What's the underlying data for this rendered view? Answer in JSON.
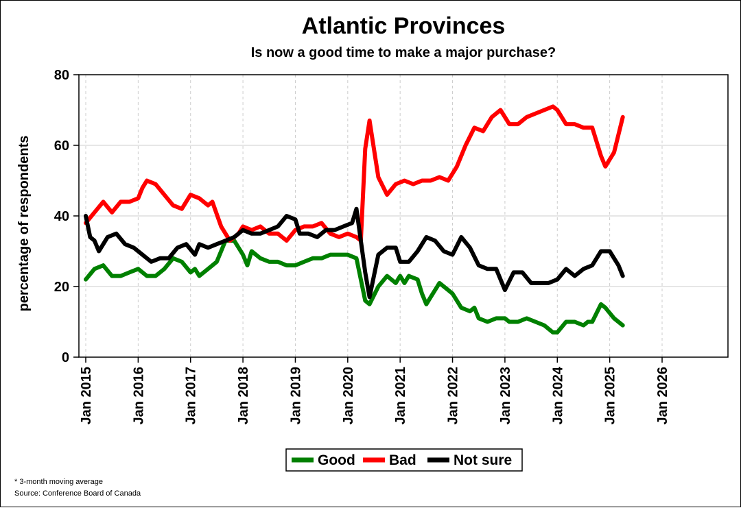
{
  "chart_data": {
    "type": "line",
    "title": "Atlantic Provinces",
    "subtitle": "Is now a good time to make a major purchase?",
    "ylabel": "percentage of respondents",
    "xlabel": "",
    "ylim": [
      0,
      80
    ],
    "yticks": [
      0,
      20,
      40,
      60,
      80
    ],
    "xlim": [
      "2015-01",
      "2026-01"
    ],
    "xticks": [
      "Jan 2015",
      "Jan 2016",
      "Jan 2017",
      "Jan 2018",
      "Jan 2019",
      "Jan 2020",
      "Jan 2021",
      "Jan 2022",
      "Jan 2023",
      "Jan 2024",
      "Jan 2025",
      "Jan 2026"
    ],
    "grid": true,
    "legend_position": "bottom-center",
    "series": [
      {
        "name": "Good",
        "color": "#008000",
        "points": [
          [
            "2015-01",
            22
          ],
          [
            "2015-03",
            25
          ],
          [
            "2015-05",
            26
          ],
          [
            "2015-07",
            23
          ],
          [
            "2015-09",
            23
          ],
          [
            "2015-11",
            24
          ],
          [
            "2016-01",
            25
          ],
          [
            "2016-03",
            23
          ],
          [
            "2016-05",
            23
          ],
          [
            "2016-07",
            25
          ],
          [
            "2016-09",
            28
          ],
          [
            "2016-11",
            27
          ],
          [
            "2017-01",
            24
          ],
          [
            "2017-02",
            25
          ],
          [
            "2017-03",
            23
          ],
          [
            "2017-05",
            25
          ],
          [
            "2017-07",
            27
          ],
          [
            "2017-09",
            33
          ],
          [
            "2017-11",
            33
          ],
          [
            "2018-01",
            29
          ],
          [
            "2018-02",
            26
          ],
          [
            "2018-03",
            30
          ],
          [
            "2018-05",
            28
          ],
          [
            "2018-07",
            27
          ],
          [
            "2018-09",
            27
          ],
          [
            "2018-11",
            26
          ],
          [
            "2019-01",
            26
          ],
          [
            "2019-03",
            27
          ],
          [
            "2019-05",
            28
          ],
          [
            "2019-07",
            28
          ],
          [
            "2019-09",
            29
          ],
          [
            "2019-11",
            29
          ],
          [
            "2020-01",
            29
          ],
          [
            "2020-03",
            28
          ],
          [
            "2020-05",
            16
          ],
          [
            "2020-06",
            15
          ],
          [
            "2020-08",
            20
          ],
          [
            "2020-10",
            23
          ],
          [
            "2020-12",
            21
          ],
          [
            "2021-01",
            23
          ],
          [
            "2021-02",
            21
          ],
          [
            "2021-03",
            23
          ],
          [
            "2021-05",
            22
          ],
          [
            "2021-06",
            18
          ],
          [
            "2021-07",
            15
          ],
          [
            "2021-08",
            17
          ],
          [
            "2021-10",
            21
          ],
          [
            "2021-12",
            19
          ],
          [
            "2022-01",
            18
          ],
          [
            "2022-02",
            16
          ],
          [
            "2022-03",
            14
          ],
          [
            "2022-05",
            13
          ],
          [
            "2022-06",
            14
          ],
          [
            "2022-07",
            11
          ],
          [
            "2022-09",
            10
          ],
          [
            "2022-11",
            11
          ],
          [
            "2023-01",
            11
          ],
          [
            "2023-02",
            10
          ],
          [
            "2023-04",
            10
          ],
          [
            "2023-06",
            11
          ],
          [
            "2023-08",
            10
          ],
          [
            "2023-10",
            9
          ],
          [
            "2023-12",
            7
          ],
          [
            "2024-01",
            7
          ],
          [
            "2024-03",
            10
          ],
          [
            "2024-05",
            10
          ],
          [
            "2024-07",
            9
          ],
          [
            "2024-08",
            10
          ],
          [
            "2024-09",
            10
          ],
          [
            "2024-11",
            15
          ],
          [
            "2024-12",
            14
          ],
          [
            "2025-02",
            11
          ],
          [
            "2025-04",
            9
          ]
        ]
      },
      {
        "name": "Bad",
        "color": "#ff0000",
        "points": [
          [
            "2015-01",
            38
          ],
          [
            "2015-03",
            41
          ],
          [
            "2015-05",
            44
          ],
          [
            "2015-07",
            41
          ],
          [
            "2015-09",
            44
          ],
          [
            "2015-11",
            44
          ],
          [
            "2016-01",
            45
          ],
          [
            "2016-02",
            48
          ],
          [
            "2016-03",
            50
          ],
          [
            "2016-05",
            49
          ],
          [
            "2016-07",
            46
          ],
          [
            "2016-09",
            43
          ],
          [
            "2016-11",
            42
          ],
          [
            "2017-01",
            46
          ],
          [
            "2017-03",
            45
          ],
          [
            "2017-05",
            43
          ],
          [
            "2017-06",
            44
          ],
          [
            "2017-08",
            37
          ],
          [
            "2017-10",
            33
          ],
          [
            "2017-12",
            35
          ],
          [
            "2018-01",
            37
          ],
          [
            "2018-03",
            36
          ],
          [
            "2018-05",
            37
          ],
          [
            "2018-07",
            35
          ],
          [
            "2018-09",
            35
          ],
          [
            "2018-11",
            33
          ],
          [
            "2019-01",
            36
          ],
          [
            "2019-03",
            37
          ],
          [
            "2019-05",
            37
          ],
          [
            "2019-07",
            38
          ],
          [
            "2019-09",
            35
          ],
          [
            "2019-11",
            34
          ],
          [
            "2020-01",
            35
          ],
          [
            "2020-03",
            34
          ],
          [
            "2020-04",
            33
          ],
          [
            "2020-05",
            59
          ],
          [
            "2020-06",
            67
          ],
          [
            "2020-08",
            51
          ],
          [
            "2020-10",
            46
          ],
          [
            "2020-12",
            49
          ],
          [
            "2021-02",
            50
          ],
          [
            "2021-04",
            49
          ],
          [
            "2021-06",
            50
          ],
          [
            "2021-08",
            50
          ],
          [
            "2021-10",
            51
          ],
          [
            "2021-12",
            50
          ],
          [
            "2022-02",
            54
          ],
          [
            "2022-04",
            60
          ],
          [
            "2022-06",
            65
          ],
          [
            "2022-08",
            64
          ],
          [
            "2022-10",
            68
          ],
          [
            "2022-12",
            70
          ],
          [
            "2023-02",
            66
          ],
          [
            "2023-04",
            66
          ],
          [
            "2023-06",
            68
          ],
          [
            "2023-08",
            69
          ],
          [
            "2023-10",
            70
          ],
          [
            "2023-12",
            71
          ],
          [
            "2024-01",
            70
          ],
          [
            "2024-03",
            66
          ],
          [
            "2024-05",
            66
          ],
          [
            "2024-07",
            65
          ],
          [
            "2024-09",
            65
          ],
          [
            "2024-11",
            57
          ],
          [
            "2024-12",
            54
          ],
          [
            "2025-02",
            58
          ],
          [
            "2025-04",
            68
          ]
        ]
      },
      {
        "name": "Not sure",
        "color": "#000000",
        "points": [
          [
            "2015-01",
            40
          ],
          [
            "2015-02",
            34
          ],
          [
            "2015-03",
            33
          ],
          [
            "2015-04",
            30
          ],
          [
            "2015-06",
            34
          ],
          [
            "2015-08",
            35
          ],
          [
            "2015-10",
            32
          ],
          [
            "2015-12",
            31
          ],
          [
            "2016-02",
            29
          ],
          [
            "2016-04",
            27
          ],
          [
            "2016-06",
            28
          ],
          [
            "2016-08",
            28
          ],
          [
            "2016-10",
            31
          ],
          [
            "2016-12",
            32
          ],
          [
            "2017-02",
            29
          ],
          [
            "2017-03",
            32
          ],
          [
            "2017-05",
            31
          ],
          [
            "2017-07",
            32
          ],
          [
            "2017-09",
            33
          ],
          [
            "2017-11",
            34
          ],
          [
            "2018-01",
            36
          ],
          [
            "2018-03",
            35
          ],
          [
            "2018-05",
            35
          ],
          [
            "2018-07",
            36
          ],
          [
            "2018-09",
            37
          ],
          [
            "2018-11",
            40
          ],
          [
            "2019-01",
            39
          ],
          [
            "2019-02",
            35
          ],
          [
            "2019-04",
            35
          ],
          [
            "2019-06",
            34
          ],
          [
            "2019-08",
            36
          ],
          [
            "2019-10",
            36
          ],
          [
            "2019-12",
            37
          ],
          [
            "2020-02",
            38
          ],
          [
            "2020-03",
            42
          ],
          [
            "2020-04",
            33
          ],
          [
            "2020-05",
            24
          ],
          [
            "2020-06",
            17
          ],
          [
            "2020-08",
            29
          ],
          [
            "2020-10",
            31
          ],
          [
            "2020-12",
            31
          ],
          [
            "2021-01",
            27
          ],
          [
            "2021-03",
            27
          ],
          [
            "2021-05",
            30
          ],
          [
            "2021-07",
            34
          ],
          [
            "2021-09",
            33
          ],
          [
            "2021-11",
            30
          ],
          [
            "2022-01",
            29
          ],
          [
            "2022-03",
            34
          ],
          [
            "2022-05",
            31
          ],
          [
            "2022-07",
            26
          ],
          [
            "2022-09",
            25
          ],
          [
            "2022-11",
            25
          ],
          [
            "2023-01",
            19
          ],
          [
            "2023-03",
            24
          ],
          [
            "2023-05",
            24
          ],
          [
            "2023-07",
            21
          ],
          [
            "2023-09",
            21
          ],
          [
            "2023-11",
            21
          ],
          [
            "2024-01",
            22
          ],
          [
            "2024-03",
            25
          ],
          [
            "2024-05",
            23
          ],
          [
            "2024-07",
            25
          ],
          [
            "2024-09",
            26
          ],
          [
            "2024-11",
            30
          ],
          [
            "2025-01",
            30
          ],
          [
            "2025-03",
            26
          ],
          [
            "2025-04",
            23
          ]
        ]
      }
    ]
  },
  "footnotes": {
    "note": "* 3-month moving average",
    "source": "Source: Conference Board of Canada"
  }
}
